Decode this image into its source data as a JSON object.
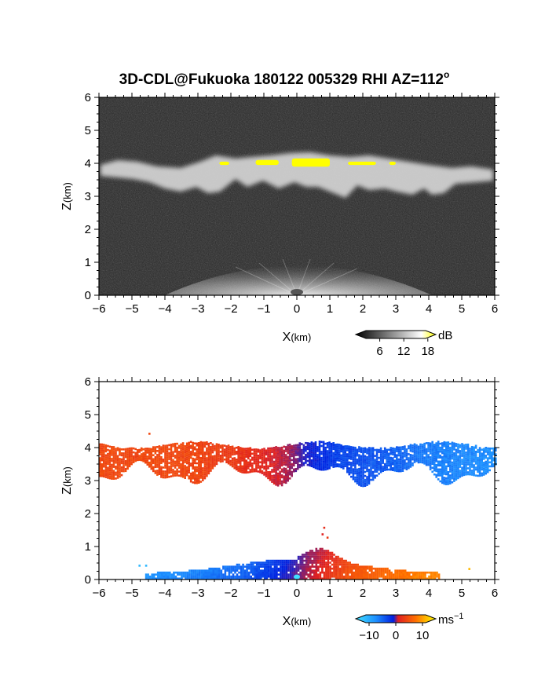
{
  "title": "3D-CDL@Fukuoka 180122 005329 RHI AZ=112",
  "title_sup": "o",
  "chart_data": [
    {
      "type": "heatmap",
      "name": "snr",
      "xlabel_main": "X",
      "xlabel_unit": "(km)",
      "ylabel_main": "Z",
      "ylabel_unit": "(km)",
      "xlim": [
        -6,
        6
      ],
      "ylim": [
        0,
        6
      ],
      "xticks": [
        "-6",
        "-5",
        "-4",
        "-3",
        "-2",
        "-1",
        "0",
        "1",
        "2",
        "3",
        "4",
        "5",
        "6"
      ],
      "yticks": [
        "0",
        "1",
        "2",
        "3",
        "4",
        "5",
        "6"
      ],
      "colorbar": {
        "unit": "dB",
        "ticks": [
          "6",
          "12",
          "18"
        ],
        "tick_values": [
          6,
          12,
          18
        ],
        "range": [
          0,
          20
        ],
        "palette": [
          "#000000",
          "#ffffff",
          "#ffff00"
        ]
      },
      "cloud_base_km": 3.1,
      "cloud_top_km": 4.1,
      "high_snr_patches": [
        {
          "x": [
            -2.35,
            -2.05
          ],
          "z": [
            3.95,
            4.05
          ]
        },
        {
          "x": [
            -1.25,
            -0.55
          ],
          "z": [
            3.95,
            4.1
          ]
        },
        {
          "x": [
            -0.15,
            1.0
          ],
          "z": [
            3.9,
            4.15
          ]
        },
        {
          "x": [
            1.55,
            2.4
          ],
          "z": [
            3.95,
            4.05
          ]
        },
        {
          "x": [
            2.8,
            3.0
          ],
          "z": [
            3.95,
            4.05
          ]
        }
      ]
    },
    {
      "type": "heatmap",
      "name": "doppler_velocity",
      "xlabel_main": "X",
      "xlabel_unit": "(km)",
      "ylabel_main": "Z",
      "ylabel_unit": "(km)",
      "xlim": [
        -6,
        6
      ],
      "ylim": [
        0,
        6
      ],
      "xticks": [
        "-6",
        "-5",
        "-4",
        "-3",
        "-2",
        "-1",
        "0",
        "1",
        "2",
        "3",
        "4",
        "5",
        "6"
      ],
      "yticks": [
        "0",
        "1",
        "2",
        "3",
        "4",
        "5",
        "6"
      ],
      "colorbar": {
        "unit": "ms",
        "unit_sup": "−1",
        "ticks": [
          "−10",
          "0",
          "10"
        ],
        "tick_values": [
          -10,
          0,
          10
        ],
        "range": [
          -15,
          15
        ],
        "palette": [
          "#40e0ff",
          "#1e90ff",
          "#0020e0",
          "#e02020",
          "#ff7000",
          "#ffff00"
        ]
      },
      "upper_layer_velocity": [
        {
          "x": -5.5,
          "v": 6
        },
        {
          "x": -3.5,
          "v": 6
        },
        {
          "x": -2.0,
          "v": 5
        },
        {
          "x": -0.8,
          "v": 3
        },
        {
          "x": -0.2,
          "v": 1
        },
        {
          "x": 0.2,
          "v": -2
        },
        {
          "x": 1.2,
          "v": -5
        },
        {
          "x": 2.5,
          "v": -6
        },
        {
          "x": 4.0,
          "v": -8
        },
        {
          "x": 5.8,
          "v": -9
        }
      ],
      "boundary_layer_velocity": [
        {
          "x": -4.5,
          "v": -9
        },
        {
          "x": -3.0,
          "v": -8
        },
        {
          "x": -1.5,
          "v": -6
        },
        {
          "x": -0.3,
          "v": -2
        },
        {
          "x": 0.3,
          "v": 2
        },
        {
          "x": 1.5,
          "v": 7
        },
        {
          "x": 3.0,
          "v": 9
        },
        {
          "x": 4.0,
          "v": 10
        }
      ]
    }
  ]
}
